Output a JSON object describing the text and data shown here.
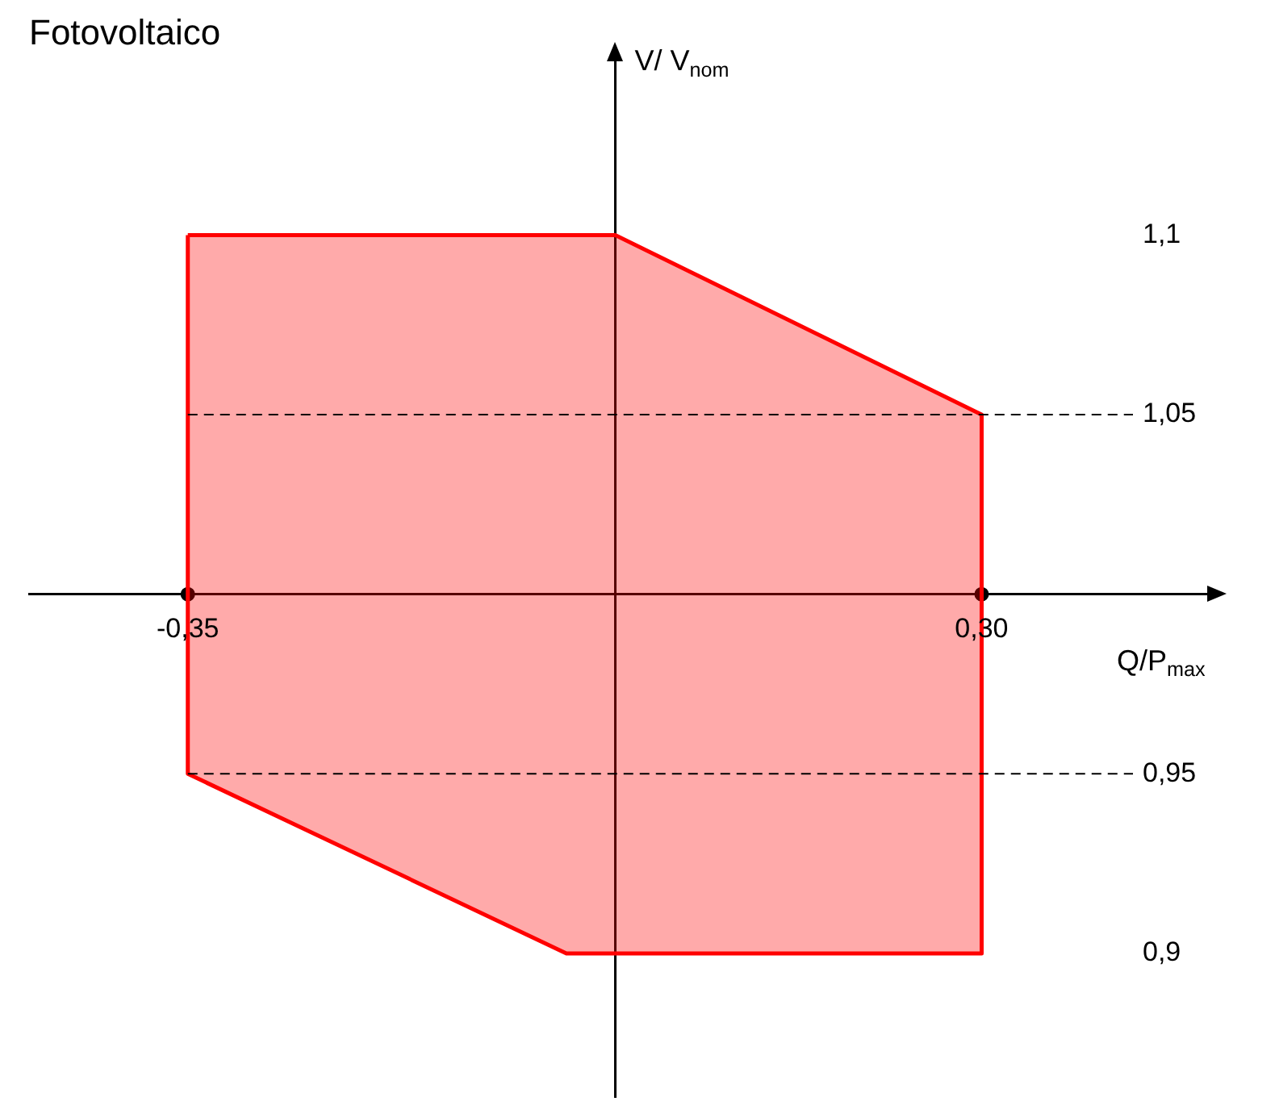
{
  "chart_data": {
    "type": "area",
    "title": "Fotovoltaico",
    "xlabel": "Q/P$_{max}$",
    "ylabel": "V/ V$_{nom}$",
    "xlim": [
      -0.48,
      0.49
    ],
    "ylim": [
      0.86,
      1.15
    ],
    "xticks": [
      {
        "value": -0.35,
        "label": "-0,35"
      },
      {
        "value": 0.3,
        "label": "0,30"
      }
    ],
    "yticks": [
      {
        "value": 0.9,
        "label": "0,9"
      },
      {
        "value": 0.95,
        "label": "0,95"
      },
      {
        "value": 1.05,
        "label": "1,05"
      },
      {
        "value": 1.1,
        "label": "1,1"
      }
    ],
    "grid": false,
    "legend": false,
    "series": [
      {
        "type": "area",
        "color": "#ff0000",
        "x": [
          -0.35,
          0,
          0.3,
          0.3,
          -0.04,
          -0.35,
          -0.35
        ],
        "values": [
          1.1,
          1.1,
          1.05,
          0.9,
          0.9,
          0.95,
          1.1
        ]
      },
      {
        "type": "scatter",
        "color": "#000000",
        "marker": "circle",
        "x": [
          -0.35,
          0.3
        ],
        "values": [
          1,
          1
        ]
      }
    ],
    "ref_lines": [
      {
        "axis": "y",
        "value": 1.05,
        "color": "#000000",
        "line_style": "dashed"
      },
      {
        "axis": "y",
        "value": 0.95,
        "color": "#000000",
        "line_style": "dashed"
      }
    ]
  }
}
